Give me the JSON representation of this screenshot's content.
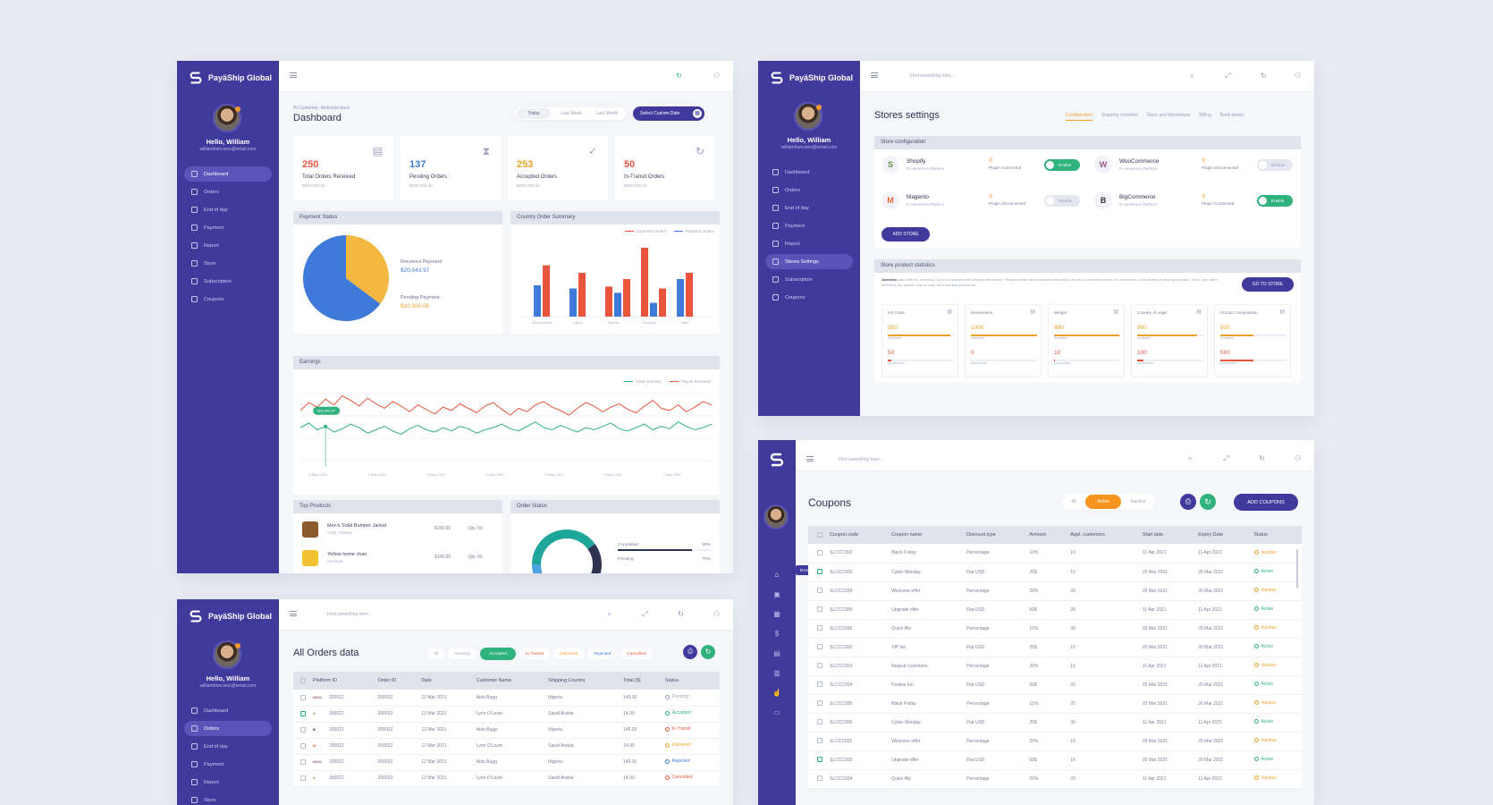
{
  "brand": "PayäShip Global",
  "user": {
    "hello": "Hello, William",
    "email": "williamfrancises@email.com"
  },
  "find_placeholder": "Find something here...",
  "nav": {
    "full": [
      "Dashboard",
      "Orders",
      "End of day",
      "Payment",
      "Report",
      "Store",
      "Subscription",
      "Coupons"
    ],
    "stores": [
      "Dashboard",
      "Orders",
      "End of day",
      "Payment",
      "Report",
      "Stores Settings",
      "Subscription",
      "Coupons"
    ],
    "orders_short": [
      "Dashboard",
      "Orders",
      "End of day",
      "Payment",
      "Report",
      "Store"
    ],
    "dashboard_tooltip": "DASHBOARD"
  },
  "dashboard": {
    "welcome": "Hi Customer, Welcome back",
    "title": "Dashboard",
    "ranges": [
      "Today",
      "Last Week",
      "Last Month"
    ],
    "custom_date": "Select Custom Date",
    "stats": [
      {
        "value": "250",
        "label": "Total Orders Received",
        "sub": "$250,000.00",
        "color": "#e8553c",
        "icon": "clipboard-icon"
      },
      {
        "value": "137",
        "label": "Pending Orders",
        "sub": "$250,000.00",
        "color": "#3f7ad9",
        "icon": "hourglass-icon"
      },
      {
        "value": "253",
        "label": "Accepted Orders",
        "sub": "$250,000.00",
        "color": "#f0a028",
        "icon": "check-circle-icon"
      },
      {
        "value": "50",
        "label": "In-Transit Orders",
        "sub": "$250,000.00",
        "color": "#e8553c",
        "icon": "refresh-icon"
      }
    ],
    "payment_status": {
      "title": "Payment Status",
      "received_label": "Received Payment",
      "received_value": "$20,043.97",
      "pending_label": "Pending Payment",
      "pending_value": "$10,900.00"
    },
    "country_summary": {
      "title": "Country Order Summary",
      "legend": [
        "Cancelled Orders",
        "Rejected Orders"
      ]
    },
    "earnings": {
      "title": "Earnings",
      "legend": [
        "Order Earning",
        "Payout Received"
      ],
      "tooltip": "$20,000.97",
      "dates": [
        "1 May 2021",
        "2 May 2021",
        "3 May 2021",
        "4 May 2021",
        "5 May 2021",
        "6 May 2021",
        "7 May 2021"
      ]
    },
    "top_products": {
      "title": "Top Products",
      "items": [
        {
          "name": "Men's Solid Bomber Jacket",
          "cat": "Cloth, Fashion",
          "price": "$145.00",
          "qty": "Qty. 56"
        },
        {
          "name": "Yellow home chair",
          "cat": "Furniture",
          "price": "$145.00",
          "qty": "Qty. 56"
        }
      ]
    },
    "order_status": {
      "title": "Order Status",
      "rows": [
        {
          "label": "Completed",
          "pct": "80%"
        },
        {
          "label": "Pending",
          "pct": "70%"
        }
      ]
    }
  },
  "chart_data": [
    {
      "type": "pie",
      "title": "Payment Status",
      "labels": [
        "Received Payment",
        "Pending Payment"
      ],
      "values": [
        20043.97,
        10900.0
      ],
      "colors": [
        "#3f7ad9",
        "#f4b740"
      ]
    },
    {
      "type": "bar",
      "title": "Country Order Summary",
      "categories": [
        "Saudi Arabia",
        "Lagos",
        "Nigeria",
        "Scotland",
        "India"
      ],
      "series": [
        {
          "name": "Cancelled Orders",
          "values": [
            82,
            70,
            60,
            45,
            70
          ],
          "color": "#e8553c"
        },
        {
          "name": "Rejected Orders",
          "values": [
            50,
            45,
            38,
            22,
            60
          ],
          "color": "#3f7ad9"
        }
      ],
      "extra_series": [
        {
          "values": [
            0,
            0,
            48,
            110,
            0
          ],
          "color": "#e8553c"
        }
      ],
      "ylim": [
        0,
        120
      ]
    },
    {
      "type": "line",
      "title": "Earnings",
      "series": [
        {
          "name": "Order Earning",
          "color": "#2fb27c",
          "values": [
            30,
            34,
            28,
            31,
            26,
            29,
            33,
            30,
            25,
            28,
            31,
            27,
            24,
            29,
            32,
            28,
            26,
            30,
            27,
            31,
            29,
            25,
            28,
            30,
            33,
            29,
            27,
            31,
            35,
            30,
            28,
            32,
            29,
            26,
            30,
            28,
            31,
            34,
            29,
            27,
            30,
            33,
            28,
            31,
            29,
            35,
            31,
            28,
            30,
            33
          ]
        },
        {
          "name": "Payout Received",
          "color": "#e8553c",
          "values": [
            45,
            52,
            48,
            55,
            50,
            58,
            54,
            49,
            56,
            51,
            47,
            53,
            49,
            44,
            50,
            46,
            42,
            48,
            45,
            51,
            47,
            43,
            49,
            52,
            46,
            41,
            47,
            44,
            50,
            53,
            48,
            45,
            41,
            47,
            52,
            49,
            44,
            48,
            51,
            46,
            43,
            49,
            54,
            47,
            45,
            50,
            44,
            48,
            53,
            50
          ]
        }
      ]
    },
    {
      "type": "pie",
      "title": "Order Status",
      "labels": [
        "Completed",
        "Pending",
        "Other"
      ],
      "values": [
        40,
        35,
        25
      ],
      "colors": [
        "#1ea69a",
        "#2d3350",
        "#4aa3df"
      ]
    }
  ],
  "stores": {
    "title": "Stores settings",
    "tabs": [
      "Configuration",
      "Shipping countries",
      "Store and Warehouse",
      "Billing",
      "Bank details"
    ],
    "config_title": "Store configuration",
    "platforms": [
      {
        "name": "Shopify",
        "type": "E-commerce Platform",
        "status": "Plugin Connected",
        "toggle": "Enable",
        "on": true,
        "icon": "shopify-icon"
      },
      {
        "name": "WooCommerce",
        "type": "E-commerce Platform",
        "status": "Plugin disconnected",
        "toggle": "Disable",
        "on": false,
        "icon": "woocommerce-icon"
      },
      {
        "name": "Magento",
        "type": "E-commerce Platform",
        "status": "Plugin disconnected",
        "toggle": "Disable",
        "on": false,
        "icon": "magento-icon"
      },
      {
        "name": "BigCommerce",
        "type": "E-commerce Platform",
        "status": "Plugin Connected",
        "toggle": "Enable",
        "on": true,
        "icon": "bigcommerce-icon"
      }
    ],
    "add_store": "ADD STORE",
    "stats_title": "Store product statistics",
    "attention": "Attention",
    "attention_text": "Add limits for Inventory Count of products with missing information. Please update the production information on your e-commerce store for products to move ahead for placing in orders. If not, your store inventory, the system may or may not check this product list.",
    "goto": "GO TO STORE",
    "stats": [
      {
        "label": "HS Code",
        "v1": "950",
        "v2": "50"
      },
      {
        "label": "Dimensions",
        "v1": "1000",
        "v2": "0"
      },
      {
        "label": "Weight",
        "v1": "990",
        "v2": "10"
      },
      {
        "label": "Country of origin",
        "v1": "900",
        "v2": "100"
      },
      {
        "label": "Product composition",
        "v1": "500",
        "v2": "500"
      }
    ],
    "stat_sub1": "Available",
    "stat_sub2": "Incomplete"
  },
  "orders": {
    "title": "All Orders data",
    "filters": [
      "All",
      "Pending",
      "Accepted",
      "In-Transit",
      "Delivered",
      "Rejected",
      "Cancelled"
    ],
    "filter_colors": [
      "#9ea3bd",
      "#9ea3bd",
      "#ffffff",
      "#e8553c",
      "#f0a028",
      "#3f7ad9",
      "#e8553c"
    ],
    "cols": [
      "Platform ID",
      "Order ID",
      "Date",
      "Customer Name",
      "Shipping Country",
      "Total ($)",
      "Status"
    ],
    "rows": [
      {
        "p": "woo",
        "pid": "200022",
        "oid": "200022",
        "date": "12 Mar 2021",
        "name": "Aida Bugg",
        "country": "Nigeria",
        "total": "145.00",
        "status": "Pending",
        "color": "#9ea3bd",
        "checked": false
      },
      {
        "p": "shop",
        "pid": "200022",
        "oid": "200022",
        "date": "12 Mar 2021",
        "name": "Lynn O'Leum",
        "country": "Saudi Arabia",
        "total": "14.00",
        "status": "Accepted",
        "color": "#2fb27c",
        "checked": true
      },
      {
        "p": "big",
        "pid": "200022",
        "oid": "200022",
        "date": "12 Mar 2021",
        "name": "Aida Bugg",
        "country": "Nigeria",
        "total": "145.00",
        "status": "In Transit",
        "color": "#e8553c",
        "checked": false
      },
      {
        "p": "mag",
        "pid": "200022",
        "oid": "200022",
        "date": "12 Mar 2021",
        "name": "Lynn O'Leum",
        "country": "Saudi Arabia",
        "total": "14.00",
        "status": "Delivered",
        "color": "#f0a028",
        "checked": false
      },
      {
        "p": "woo",
        "pid": "200022",
        "oid": "200022",
        "date": "12 Mar 2021",
        "name": "Aida Bugg",
        "country": "Nigeria",
        "total": "145.00",
        "status": "Rejected",
        "color": "#3f7ad9",
        "checked": false
      },
      {
        "p": "shop",
        "pid": "200022",
        "oid": "200022",
        "date": "12 Mar 2021",
        "name": "Lynn O'Leum",
        "country": "Saudi Arabia",
        "total": "14.00",
        "status": "Cancelled",
        "color": "#e8553c",
        "checked": false
      }
    ]
  },
  "coupons": {
    "title": "Coupons",
    "filters": [
      "All",
      "Active",
      "Inactive"
    ],
    "add": "ADD COUPONS",
    "cols": [
      "Coupon code",
      "Coupon name",
      "Discount type",
      "Amount",
      "Appl. customers",
      "Start date",
      "Expiry Date",
      "Status"
    ],
    "rows": [
      {
        "code": "SLCCC002",
        "name": "Black Friday",
        "type": "Percentage",
        "amt": "10%",
        "cust": "10",
        "start": "11 Apr 2021",
        "exp": "11 Apr 2021",
        "status": "Inactive",
        "checked": false
      },
      {
        "code": "SLCCC003",
        "name": "Cyber Monday",
        "type": "Flat USD",
        "amt": "25$",
        "cust": "15",
        "start": "25 Mar 2021",
        "exp": "25 Mar 2021",
        "status": "Active",
        "checked": true
      },
      {
        "code": "SLCCC004",
        "name": "Welcome offer",
        "type": "Percentage",
        "amt": "20%",
        "cust": "20",
        "start": "20 Mar 2021",
        "exp": "20 Mar 2021",
        "status": "Inactive",
        "checked": false
      },
      {
        "code": "SLCCC005",
        "name": "Upgrade offer",
        "type": "Flat USD",
        "amt": "50$",
        "cust": "25",
        "start": "11 Apr 2021",
        "exp": "11 Apr 2021",
        "status": "Active",
        "checked": false
      },
      {
        "code": "SLCCC006",
        "name": "Quick fifty",
        "type": "Percentage",
        "amt": "10%",
        "cust": "30",
        "start": "25 Mar 2021",
        "exp": "25 Mar 2021",
        "status": "Inactive",
        "checked": false
      },
      {
        "code": "SLCCC002",
        "name": "VIP list",
        "type": "Flat USD",
        "amt": "25$",
        "cust": "10",
        "start": "20 Mar 2021",
        "exp": "20 Mar 2021",
        "status": "Active",
        "checked": false
      },
      {
        "code": "SLCCC003",
        "name": "Repeat customers",
        "type": "Percentage",
        "amt": "20%",
        "cust": "15",
        "start": "11 Apr 2021",
        "exp": "11 Apr 2021",
        "status": "Inactive",
        "checked": false
      },
      {
        "code": "SLCCC004",
        "name": "Festive fun",
        "type": "Flat USD",
        "amt": "50$",
        "cust": "20",
        "start": "25 Mar 2021",
        "exp": "25 Mar 2021",
        "status": "Active",
        "checked": false
      },
      {
        "code": "SLCCC005",
        "name": "Black Friday",
        "type": "Percentage",
        "amt": "10%",
        "cust": "25",
        "start": "20 Mar 2021",
        "exp": "20 Mar 2021",
        "status": "Inactive",
        "checked": false
      },
      {
        "code": "SLCCC006",
        "name": "Cyber Monday",
        "type": "Flat USD",
        "amt": "25$",
        "cust": "30",
        "start": "11 Apr 2021",
        "exp": "11 Apr 2021",
        "status": "Active",
        "checked": false
      },
      {
        "code": "SLCCC002",
        "name": "Welcome offer",
        "type": "Percentage",
        "amt": "20%",
        "cust": "10",
        "start": "25 Mar 2021",
        "exp": "25 Mar 2021",
        "status": "Inactive",
        "checked": false
      },
      {
        "code": "SLCCC003",
        "name": "Upgrade offer",
        "type": "Flat USD",
        "amt": "50$",
        "cust": "15",
        "start": "20 Mar 2021",
        "exp": "20 Mar 2021",
        "status": "Active",
        "checked": true
      },
      {
        "code": "SLCCC004",
        "name": "Quick fifty",
        "type": "Percentage",
        "amt": "20%",
        "cust": "20",
        "start": "11 Apr 2021",
        "exp": "11 Apr 2021",
        "status": "Inactive",
        "checked": false
      }
    ]
  },
  "colors": {
    "sidebar": "#3f3a9c",
    "accent_green": "#2fb27c",
    "accent_orange": "#f7941d",
    "accent_red": "#e8553c",
    "accent_blue": "#3f7ad9"
  }
}
